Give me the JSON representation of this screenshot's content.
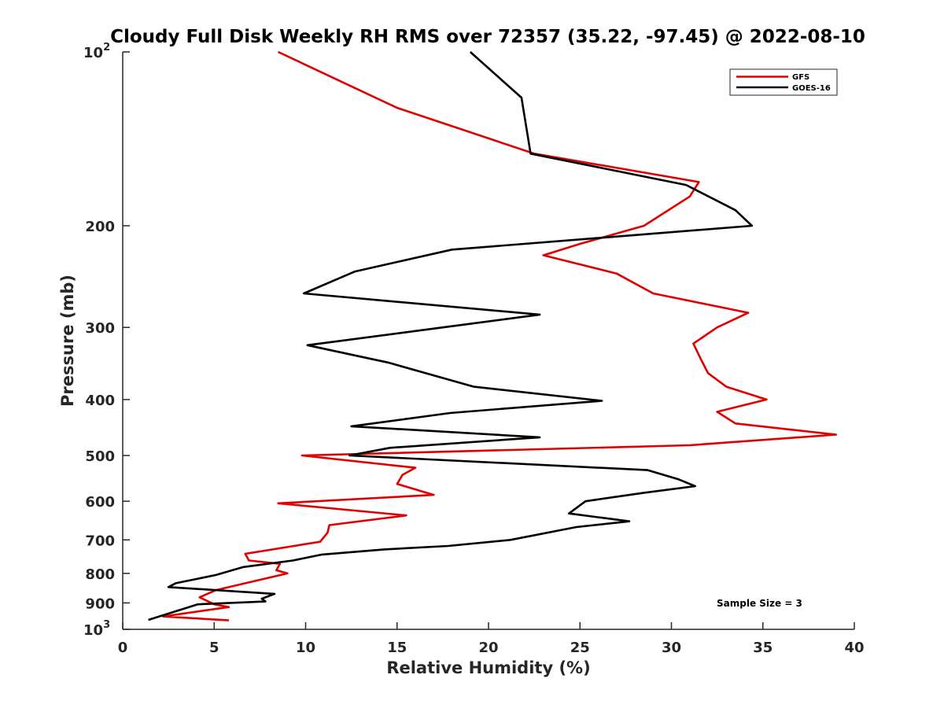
{
  "chart_data": {
    "type": "line",
    "title": "Cloudy Full Disk Weekly RH RMS over 72357 (35.22, -97.45) @ 2022-08-10",
    "xlabel": "Relative Humidity (%)",
    "ylabel": "Pressure (mb)",
    "xlim": [
      0,
      40
    ],
    "ylim": [
      100,
      1000
    ],
    "y_scale": "log",
    "y_reversed": true,
    "grid": false,
    "legend_position": "top-right",
    "x_ticks": [
      "0",
      "5",
      "10",
      "15",
      "20",
      "25",
      "30",
      "35",
      "40"
    ],
    "y_ticks": [
      {
        "value": 100,
        "base": "10",
        "exp": "2"
      },
      {
        "value": 200,
        "label": "200"
      },
      {
        "value": 300,
        "label": "300"
      },
      {
        "value": 400,
        "label": "400"
      },
      {
        "value": 500,
        "label": "500"
      },
      {
        "value": 600,
        "label": "600"
      },
      {
        "value": 700,
        "label": "700"
      },
      {
        "value": 800,
        "label": "800"
      },
      {
        "value": 900,
        "label": "900"
      },
      {
        "value": 1000,
        "base": "10",
        "exp": "3"
      }
    ],
    "annotation": "Sample Size = 3",
    "series": [
      {
        "name": "GFS",
        "color": "#e00000",
        "points": [
          [
            8.5,
            100
          ],
          [
            15,
            125
          ],
          [
            22.5,
            150
          ],
          [
            31.5,
            168
          ],
          [
            31,
            178
          ],
          [
            28.5,
            200
          ],
          [
            25,
            215
          ],
          [
            23,
            225
          ],
          [
            27,
            242
          ],
          [
            29,
            262
          ],
          [
            34.2,
            283
          ],
          [
            32.5,
            300
          ],
          [
            31.2,
            320
          ],
          [
            31.6,
            340
          ],
          [
            32,
            360
          ],
          [
            33,
            380
          ],
          [
            35.2,
            400
          ],
          [
            32.5,
            420
          ],
          [
            33.5,
            440
          ],
          [
            39,
            460
          ],
          [
            31,
            480
          ],
          [
            9.8,
            500
          ],
          [
            16,
            525
          ],
          [
            15.3,
            540
          ],
          [
            15,
            560
          ],
          [
            17,
            585
          ],
          [
            8.5,
            605
          ],
          [
            15.5,
            635
          ],
          [
            11.3,
            660
          ],
          [
            11.2,
            680
          ],
          [
            10.8,
            705
          ],
          [
            6.7,
            740
          ],
          [
            6.9,
            760
          ],
          [
            8.6,
            770
          ],
          [
            8.4,
            790
          ],
          [
            9,
            800
          ],
          [
            5.1,
            855
          ],
          [
            4.2,
            880
          ],
          [
            5,
            905
          ],
          [
            5.8,
            915
          ],
          [
            2.2,
            950
          ],
          [
            5.8,
            965
          ]
        ]
      },
      {
        "name": "GOES-16",
        "color": "#000000",
        "points": [
          [
            19,
            100
          ],
          [
            21.8,
            120
          ],
          [
            22.3,
            150
          ],
          [
            30.8,
            170
          ],
          [
            33.5,
            188
          ],
          [
            34.4,
            200
          ],
          [
            18,
            220
          ],
          [
            12.7,
            240
          ],
          [
            9.9,
            262
          ],
          [
            22.8,
            285
          ],
          [
            17.5,
            300
          ],
          [
            10.1,
            322
          ],
          [
            14.5,
            345
          ],
          [
            19.2,
            380
          ],
          [
            26.2,
            402
          ],
          [
            17.9,
            422
          ],
          [
            12.5,
            445
          ],
          [
            22.8,
            465
          ],
          [
            14.6,
            485
          ],
          [
            12.4,
            500
          ],
          [
            28.7,
            530
          ],
          [
            30.4,
            550
          ],
          [
            31.3,
            565
          ],
          [
            28.5,
            580
          ],
          [
            25.3,
            600
          ],
          [
            24.4,
            630
          ],
          [
            27.7,
            650
          ],
          [
            24.8,
            665
          ],
          [
            21.2,
            700
          ],
          [
            17.8,
            717
          ],
          [
            14.3,
            727
          ],
          [
            10.9,
            742
          ],
          [
            9.3,
            760
          ],
          [
            6.6,
            780
          ],
          [
            5.1,
            805
          ],
          [
            2.9,
            832
          ],
          [
            2.5,
            845
          ],
          [
            8.3,
            868
          ],
          [
            7.6,
            885
          ],
          [
            7.8,
            895
          ],
          [
            4.1,
            905
          ],
          [
            1.4,
            963
          ]
        ]
      }
    ]
  }
}
